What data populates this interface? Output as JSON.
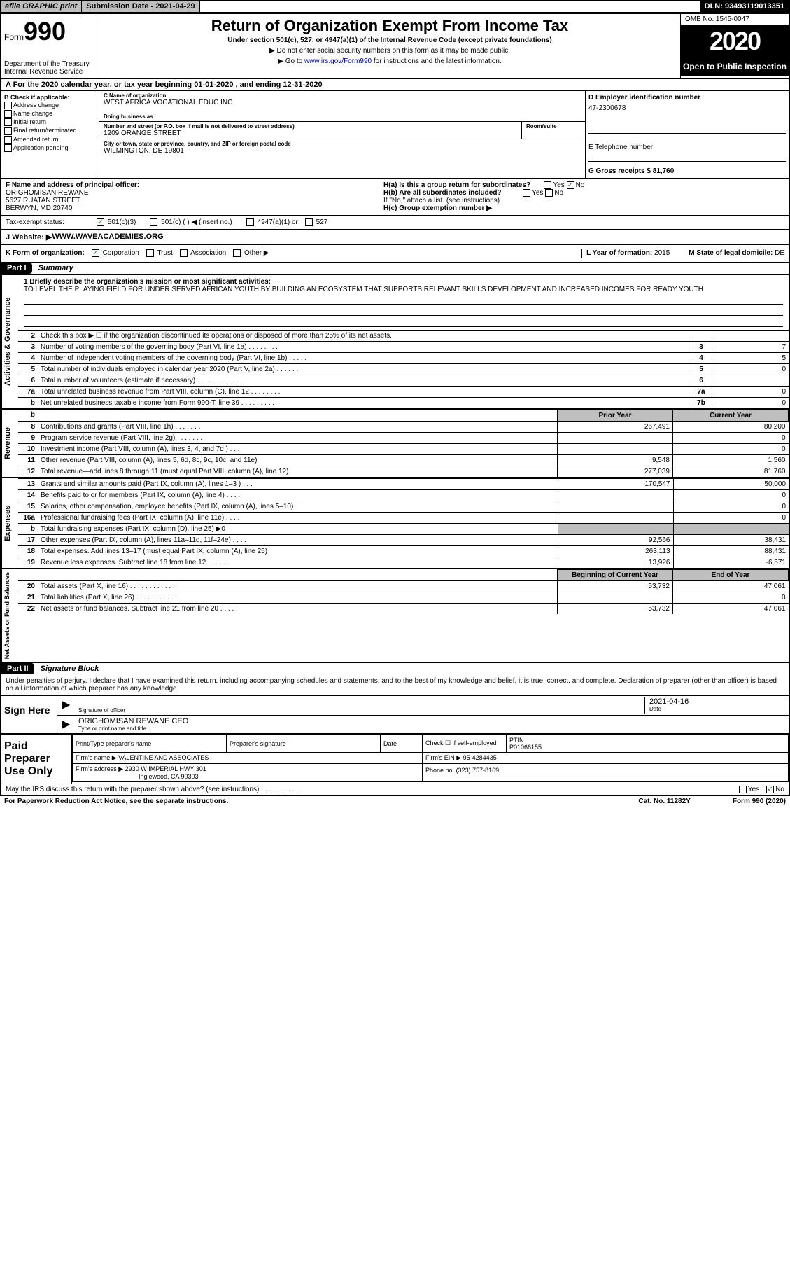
{
  "topbar": {
    "efile": "efile GRAPHIC print",
    "submission": "Submission Date - 2021-04-29",
    "dln": "DLN: 93493119013351"
  },
  "header": {
    "form_word": "Form",
    "form_no": "990",
    "dept": "Department of the Treasury\nInternal Revenue Service",
    "title": "Return of Organization Exempt From Income Tax",
    "subtitle": "Under section 501(c), 527, or 4947(a)(1) of the Internal Revenue Code (except private foundations)",
    "instr1": "▶ Do not enter social security numbers on this form as it may be made public.",
    "instr2_pre": "▶ Go to ",
    "instr2_link": "www.irs.gov/Form990",
    "instr2_post": " for instructions and the latest information.",
    "omb": "OMB No. 1545-0047",
    "year": "2020",
    "open": "Open to Public Inspection"
  },
  "lineA": "A For the 2020 calendar year, or tax year beginning 01-01-2020    , and ending 12-31-2020",
  "boxB": {
    "hdr": "B Check if applicable:",
    "opts": [
      "Address change",
      "Name change",
      "Initial return",
      "Final return/terminated",
      "Amended return",
      "Application pending"
    ]
  },
  "boxC": {
    "name_lbl": "C Name of organization",
    "name": "WEST AFRICA VOCATIONAL EDUC INC",
    "dba_lbl": "Doing business as",
    "addr_lbl": "Number and street (or P.O. box if mail is not delivered to street address)",
    "room_lbl": "Room/suite",
    "addr": "1209 ORANGE STREET",
    "city_lbl": "City or town, state or province, country, and ZIP or foreign postal code",
    "city": "WILMINGTON, DE  19801"
  },
  "boxD": {
    "lbl": "D Employer identification number",
    "val": "47-2300678",
    "e_lbl": "E Telephone number",
    "g_lbl": "G Gross receipts $ 81,760"
  },
  "boxF": {
    "lbl": "F  Name and address of principal officer:",
    "name": "ORIGHOMISAN REWANE",
    "addr1": "5627 RUATAN STREET",
    "addr2": "BERWYN, MD  20740"
  },
  "boxH": {
    "a": "H(a)  Is this a group return for subordinates?",
    "b": "H(b)  Are all subordinates included?",
    "b_note": "If \"No,\" attach a list. (see instructions)",
    "c": "H(c)  Group exemption number ▶",
    "yes": "Yes",
    "no": "No"
  },
  "taxstatus": {
    "lbl": "Tax-exempt status:",
    "o1": "501(c)(3)",
    "o2": "501(c) (  ) ◀ (insert no.)",
    "o3": "4947(a)(1) or",
    "o4": "527"
  },
  "website": {
    "lbl": "J   Website: ▶",
    "val": "  WWW.WAVEACADEMIES.ORG"
  },
  "kline": {
    "lbl": "K Form of organization:",
    "o1": "Corporation",
    "o2": "Trust",
    "o3": "Association",
    "o4": "Other ▶",
    "l_lbl": "L Year of formation: ",
    "l_val": "2015",
    "m_lbl": "M State of legal domicile: ",
    "m_val": "DE"
  },
  "part1": {
    "hdr": "Part I",
    "title": "Summary"
  },
  "mission": {
    "lbl": "1  Briefly describe the organization's mission or most significant activities:",
    "text": "TO LEVEL THE PLAYING FIELD FOR UNDER SERVED AFRICAN YOUTH BY BUILDING AN ECOSYSTEM THAT SUPPORTS RELEVANT SKILLS DEVELOPMENT AND INCREASED INCOMES FOR READY YOUTH"
  },
  "gov_rows": [
    {
      "n": "2",
      "t": "Check this box ▶ ☐  if the organization discontinued its operations or disposed of more than 25% of its net assets.",
      "b": "",
      "v": ""
    },
    {
      "n": "3",
      "t": "Number of voting members of the governing body (Part VI, line 1a)  .    .    .    .    .    .    .    .",
      "b": "3",
      "v": "7"
    },
    {
      "n": "4",
      "t": "Number of independent voting members of the governing body (Part VI, line 1b)  .    .    .    .    .",
      "b": "4",
      "v": "5"
    },
    {
      "n": "5",
      "t": "Total number of individuals employed in calendar year 2020 (Part V, line 2a)  .    .    .    .    .    .",
      "b": "5",
      "v": "0"
    },
    {
      "n": "6",
      "t": "Total number of volunteers (estimate if necessary)   .    .    .    .    .    .    .    .    .    .    .    .",
      "b": "6",
      "v": ""
    },
    {
      "n": "7a",
      "t": "Total unrelated business revenue from Part VIII, column (C), line 12  .    .    .    .    .    .    .    .",
      "b": "7a",
      "v": "0"
    },
    {
      "n": "b",
      "t": "Net unrelated business taxable income from Form 990-T, line 39   .    .    .    .    .    .    .    .    .",
      "b": "7b",
      "v": "0"
    }
  ],
  "rev_hdr": {
    "prior": "Prior Year",
    "curr": "Current Year"
  },
  "rev_rows": [
    {
      "n": "8",
      "t": "Contributions and grants (Part VIII, line 1h)   .    .    .    .    .    .    .",
      "p": "267,491",
      "c": "80,200"
    },
    {
      "n": "9",
      "t": "Program service revenue (Part VIII, line 2g)   .    .    .    .    .    .    .",
      "p": "",
      "c": "0"
    },
    {
      "n": "10",
      "t": "Investment income (Part VIII, column (A), lines 3, 4, and 7d )   .    .    .",
      "p": "",
      "c": "0"
    },
    {
      "n": "11",
      "t": "Other revenue (Part VIII, column (A), lines 5, 6d, 8c, 9c, 10c, and 11e)",
      "p": "9,548",
      "c": "1,560"
    },
    {
      "n": "12",
      "t": "Total revenue—add lines 8 through 11 (must equal Part VIII, column (A), line 12)",
      "p": "277,039",
      "c": "81,760"
    }
  ],
  "exp_rows": [
    {
      "n": "13",
      "t": "Grants and similar amounts paid (Part IX, column (A), lines 1–3 )  .    .    .",
      "p": "170,547",
      "c": "50,000"
    },
    {
      "n": "14",
      "t": "Benefits paid to or for members (Part IX, column (A), line 4)  .    .    .    .",
      "p": "",
      "c": "0"
    },
    {
      "n": "15",
      "t": "Salaries, other compensation, employee benefits (Part IX, column (A), lines 5–10)",
      "p": "",
      "c": "0"
    },
    {
      "n": "16a",
      "t": "Professional fundraising fees (Part IX, column (A), line 11e)  .    .    .    .",
      "p": "",
      "c": "0"
    },
    {
      "n": "b",
      "t": "Total fundraising expenses (Part IX, column (D), line 25) ▶0",
      "p": "shade",
      "c": "shade"
    },
    {
      "n": "17",
      "t": "Other expenses (Part IX, column (A), lines 11a–11d, 11f–24e)  .    .    .    .",
      "p": "92,566",
      "c": "38,431"
    },
    {
      "n": "18",
      "t": "Total expenses. Add lines 13–17 (must equal Part IX, column (A), line 25)",
      "p": "263,113",
      "c": "88,431"
    },
    {
      "n": "19",
      "t": "Revenue less expenses. Subtract line 18 from line 12  .    .    .    .    .    .",
      "p": "13,926",
      "c": "-6,671"
    }
  ],
  "net_hdr": {
    "prior": "Beginning of Current Year",
    "curr": "End of Year"
  },
  "net_rows": [
    {
      "n": "20",
      "t": "Total assets (Part X, line 16)  .    .    .    .    .    .    .    .    .    .    .    .",
      "p": "53,732",
      "c": "47,061"
    },
    {
      "n": "21",
      "t": "Total liabilities (Part X, line 26)  .    .    .    .    .    .    .    .    .    .    .",
      "p": "",
      "c": "0"
    },
    {
      "n": "22",
      "t": "Net assets or fund balances. Subtract line 21 from line 20  .    .    .    .    .",
      "p": "53,732",
      "c": "47,061"
    }
  ],
  "part2": {
    "hdr": "Part II",
    "title": "Signature Block"
  },
  "declare": "Under penalties of perjury, I declare that I have examined this return, including accompanying schedules and statements, and to the best of my knowledge and belief, it is true, correct, and complete. Declaration of preparer (other than officer) is based on all information of which preparer has any knowledge.",
  "sign": {
    "lbl": "Sign Here",
    "sig_lbl": "Signature of officer",
    "date": "2021-04-16",
    "date_lbl": "Date",
    "name": "ORIGHOMISAN REWANE CEO",
    "name_lbl": "Type or print name and title"
  },
  "prep": {
    "lbl": "Paid Preparer Use Only",
    "c1": "Print/Type preparer's name",
    "c2": "Preparer's signature",
    "c3": "Date",
    "c4a": "Check ☐ if self-employed",
    "c5": "PTIN",
    "ptin": "P01066155",
    "firm_lbl": "Firm's name      ▶",
    "firm": "VALENTINE AND ASSOCIATES",
    "ein_lbl": "Firm's EIN ▶",
    "ein": "95-4284435",
    "addr_lbl": "Firm's address ▶",
    "addr1": "2930 W IMPERIAL HWY 301",
    "addr2": "Inglewood, CA  90303",
    "phone_lbl": "Phone no.",
    "phone": "(323) 757-8169"
  },
  "irs_discuss": "May the IRS discuss this return with the preparer shown above? (see instructions)   .    .    .    .    .    .    .    .    .    .",
  "footer": {
    "pra": "For Paperwork Reduction Act Notice, see the separate instructions.",
    "cat": "Cat. No. 11282Y",
    "form": "Form 990 (2020)"
  },
  "sides": {
    "gov": "Activities & Governance",
    "rev": "Revenue",
    "exp": "Expenses",
    "net": "Net Assets or Fund Balances"
  }
}
